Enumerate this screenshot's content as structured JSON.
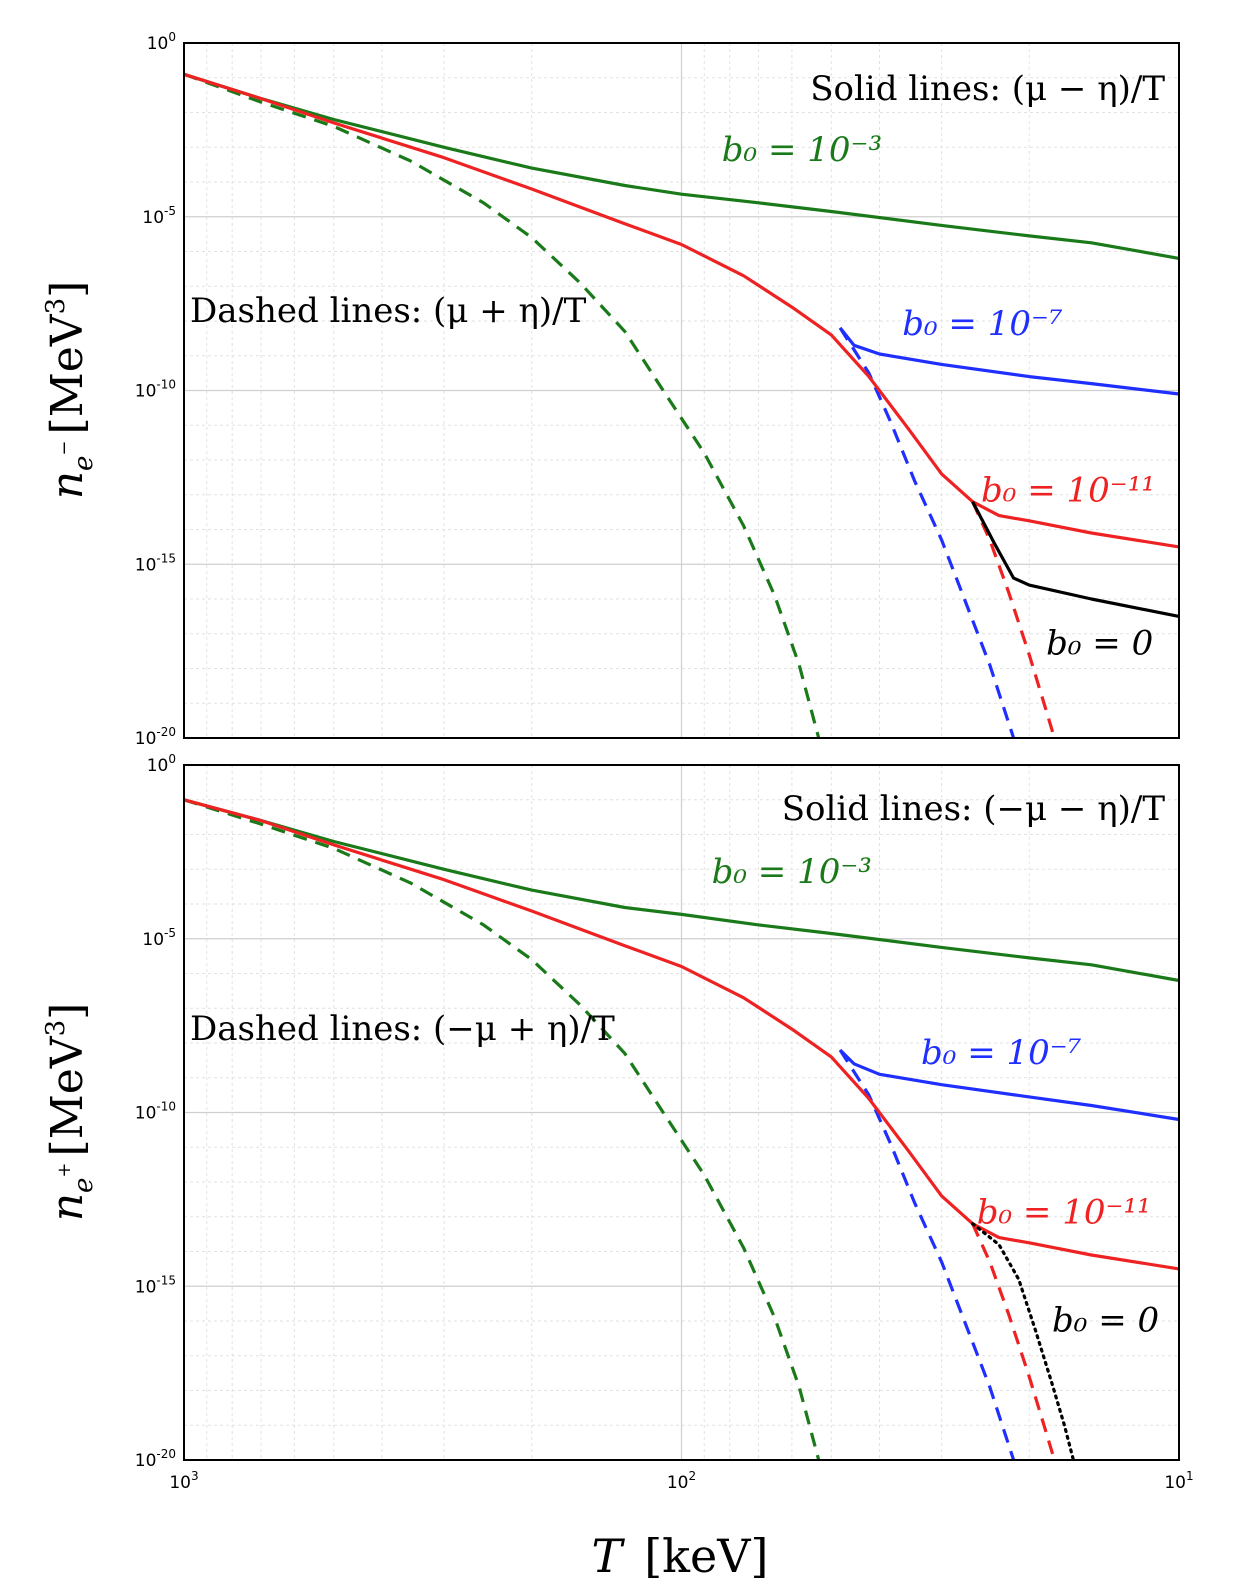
{
  "figure": {
    "xlabel_var": "T",
    "xlabel_unit": "[keV]"
  },
  "chart_data": [
    {
      "type": "line",
      "panel": "top",
      "ylabel_var": "n",
      "ylabel_sub": "e",
      "ylabel_sup": "−",
      "ylabel_unit": "[MeV",
      "ylabel_unit_exp": "3",
      "ylabel_close": "]",
      "x_scale": "log",
      "x_reversed": true,
      "xlim": [
        1000,
        10
      ],
      "y_scale": "log",
      "ylim": [
        1e-20,
        1
      ],
      "grid": true,
      "x_ticks": [
        {
          "base": "10",
          "exp": "3",
          "value": 1000
        },
        {
          "base": "10",
          "exp": "2",
          "value": 100
        },
        {
          "base": "10",
          "exp": "1",
          "value": 10
        }
      ],
      "y_ticks": [
        {
          "base": "10",
          "exp": "0",
          "value": 0
        },
        {
          "base": "10",
          "exp": "-5",
          "value": -5
        },
        {
          "base": "10",
          "exp": "-10",
          "value": -10
        },
        {
          "base": "10",
          "exp": "-15",
          "value": -15
        },
        {
          "base": "10",
          "exp": "-20",
          "value": -20
        }
      ],
      "annotations": {
        "solid": "Solid lines: (μ − η)/T",
        "dashed": "Dashed lines: (μ + η)/T"
      },
      "series": [
        {
          "label": "b₀ = 10⁻³",
          "color": "#1a7a1a",
          "style": "solid",
          "log10_points": [
            [
              1000,
              -0.9
            ],
            [
              700,
              -1.6
            ],
            [
              500,
              -2.2
            ],
            [
              300,
              -3.0
            ],
            [
              200,
              -3.6
            ],
            [
              130,
              -4.1
            ],
            [
              100,
              -4.35
            ],
            [
              70,
              -4.6
            ],
            [
              50,
              -4.85
            ],
            [
              30,
              -5.25
            ],
            [
              20,
              -5.55
            ],
            [
              15,
              -5.75
            ],
            [
              10,
              -6.2
            ]
          ]
        },
        {
          "label": "",
          "color": "#1a7a1a",
          "style": "dashed",
          "log10_points": [
            [
              1000,
              -0.9
            ],
            [
              700,
              -1.7
            ],
            [
              500,
              -2.4
            ],
            [
              350,
              -3.4
            ],
            [
              250,
              -4.6
            ],
            [
              200,
              -5.6
            ],
            [
              160,
              -6.9
            ],
            [
              130,
              -8.3
            ],
            [
              110,
              -9.9
            ],
            [
              90,
              -11.8
            ],
            [
              75,
              -13.9
            ],
            [
              65,
              -15.9
            ],
            [
              58,
              -17.9
            ],
            [
              53,
              -20
            ]
          ]
        },
        {
          "label": "b₀ = 10⁻⁷",
          "color": "#1f2fff",
          "style": "solid",
          "log10_points": [
            [
              48,
              -8.2
            ],
            [
              45,
              -8.7
            ],
            [
              40,
              -8.95
            ],
            [
              30,
              -9.25
            ],
            [
              20,
              -9.6
            ],
            [
              15,
              -9.8
            ],
            [
              10,
              -10.1
            ]
          ]
        },
        {
          "label": "",
          "color": "#1f2fff",
          "style": "dashed",
          "log10_points": [
            [
              48,
              -8.2
            ],
            [
              42,
              -9.5
            ],
            [
              38,
              -10.9
            ],
            [
              34,
              -12.6
            ],
            [
              30,
              -14.3
            ],
            [
              27,
              -16.0
            ],
            [
              24,
              -17.9
            ],
            [
              21.5,
              -20
            ]
          ]
        },
        {
          "label": "b₀ = 10⁻¹¹",
          "color": "#ee2222",
          "style": "solid",
          "log10_points": [
            [
              1000,
              -0.9
            ],
            [
              700,
              -1.6
            ],
            [
              500,
              -2.3
            ],
            [
              300,
              -3.3
            ],
            [
              200,
              -4.2
            ],
            [
              130,
              -5.2
            ],
            [
              100,
              -5.8
            ],
            [
              75,
              -6.7
            ],
            [
              60,
              -7.6
            ],
            [
              50,
              -8.4
            ],
            [
              42,
              -9.6
            ],
            [
              35,
              -11.1
            ],
            [
              30,
              -12.4
            ],
            [
              26,
              -13.2
            ],
            [
              23,
              -13.6
            ],
            [
              20,
              -13.75
            ],
            [
              15,
              -14.1
            ],
            [
              10,
              -14.5
            ]
          ]
        },
        {
          "label": "",
          "color": "#ee2222",
          "style": "dashed",
          "log10_points": [
            [
              26,
              -13.2
            ],
            [
              24,
              -14.3
            ],
            [
              22,
              -15.8
            ],
            [
              20,
              -17.6
            ],
            [
              18.5,
              -19.2
            ],
            [
              17.8,
              -20
            ]
          ]
        },
        {
          "label": "b₀ = 0",
          "color": "#000000",
          "style": "solid",
          "log10_points": [
            [
              26,
              -13.2
            ],
            [
              23.5,
              -14.4
            ],
            [
              21.5,
              -15.4
            ],
            [
              20,
              -15.6
            ],
            [
              15,
              -16.0
            ],
            [
              10,
              -16.5
            ]
          ]
        }
      ],
      "labels": [
        {
          "text": "b₀ = 10⁻³",
          "color": "#1a7a1a",
          "anchor_x": 83,
          "anchor_logy": -3.4
        },
        {
          "text": "b₀ = 10⁻⁷",
          "color": "#1f2fff",
          "anchor_x": 36,
          "anchor_logy": -8.4
        },
        {
          "text": "b₀ = 10⁻¹¹",
          "color": "#ee2222",
          "anchor_x": 25,
          "anchor_logy": -13.2
        },
        {
          "text": "b₀ = 0",
          "color": "#000000",
          "anchor_x": 18.5,
          "anchor_logy": -17.6
        }
      ]
    },
    {
      "type": "line",
      "panel": "bottom",
      "ylabel_var": "n",
      "ylabel_sub": "e",
      "ylabel_sup": "+",
      "ylabel_unit": "[MeV",
      "ylabel_unit_exp": "3",
      "ylabel_close": "]",
      "x_scale": "log",
      "x_reversed": true,
      "xlim": [
        1000,
        10
      ],
      "y_scale": "log",
      "ylim": [
        1e-20,
        1
      ],
      "grid": true,
      "x_ticks": [
        {
          "base": "10",
          "exp": "3",
          "value": 1000
        },
        {
          "base": "10",
          "exp": "2",
          "value": 100
        },
        {
          "base": "10",
          "exp": "1",
          "value": 10
        }
      ],
      "y_ticks": [
        {
          "base": "10",
          "exp": "0",
          "value": 0
        },
        {
          "base": "10",
          "exp": "-5",
          "value": -5
        },
        {
          "base": "10",
          "exp": "-10",
          "value": -10
        },
        {
          "base": "10",
          "exp": "-15",
          "value": -15
        },
        {
          "base": "10",
          "exp": "-20",
          "value": -20
        }
      ],
      "annotations": {
        "solid": "Solid lines: (−μ − η)/T",
        "dashed": "Dashed lines: (−μ + η)/T"
      },
      "series": [
        {
          "label": "b₀ = 10⁻³",
          "color": "#1a7a1a",
          "style": "solid",
          "log10_points": [
            [
              1000,
              -1.0
            ],
            [
              700,
              -1.6
            ],
            [
              500,
              -2.2
            ],
            [
              300,
              -3.0
            ],
            [
              200,
              -3.6
            ],
            [
              130,
              -4.1
            ],
            [
              100,
              -4.3
            ],
            [
              70,
              -4.6
            ],
            [
              50,
              -4.85
            ],
            [
              30,
              -5.25
            ],
            [
              20,
              -5.55
            ],
            [
              15,
              -5.75
            ],
            [
              10,
              -6.2
            ]
          ]
        },
        {
          "label": "",
          "color": "#1a7a1a",
          "style": "dashed",
          "log10_points": [
            [
              1000,
              -1.0
            ],
            [
              700,
              -1.7
            ],
            [
              500,
              -2.4
            ],
            [
              350,
              -3.4
            ],
            [
              250,
              -4.6
            ],
            [
              200,
              -5.6
            ],
            [
              160,
              -6.9
            ],
            [
              130,
              -8.3
            ],
            [
              110,
              -9.9
            ],
            [
              90,
              -11.8
            ],
            [
              75,
              -13.9
            ],
            [
              65,
              -15.9
            ],
            [
              58,
              -17.9
            ],
            [
              53,
              -20
            ]
          ]
        },
        {
          "label": "b₀ = 10⁻⁷",
          "color": "#1f2fff",
          "style": "solid",
          "log10_points": [
            [
              48,
              -8.2
            ],
            [
              45,
              -8.6
            ],
            [
              40,
              -8.9
            ],
            [
              30,
              -9.2
            ],
            [
              20,
              -9.55
            ],
            [
              15,
              -9.8
            ],
            [
              10,
              -10.2
            ]
          ]
        },
        {
          "label": "",
          "color": "#1f2fff",
          "style": "dashed",
          "log10_points": [
            [
              48,
              -8.2
            ],
            [
              42,
              -9.5
            ],
            [
              38,
              -10.9
            ],
            [
              34,
              -12.6
            ],
            [
              30,
              -14.3
            ],
            [
              27,
              -16.0
            ],
            [
              24,
              -17.9
            ],
            [
              21.5,
              -20
            ]
          ]
        },
        {
          "label": "b₀ = 10⁻¹¹",
          "color": "#ee2222",
          "style": "solid",
          "log10_points": [
            [
              1000,
              -1.0
            ],
            [
              700,
              -1.6
            ],
            [
              500,
              -2.3
            ],
            [
              300,
              -3.3
            ],
            [
              200,
              -4.2
            ],
            [
              130,
              -5.2
            ],
            [
              100,
              -5.8
            ],
            [
              75,
              -6.7
            ],
            [
              60,
              -7.6
            ],
            [
              50,
              -8.4
            ],
            [
              42,
              -9.6
            ],
            [
              35,
              -11.1
            ],
            [
              30,
              -12.4
            ],
            [
              26,
              -13.2
            ],
            [
              23,
              -13.6
            ],
            [
              20,
              -13.75
            ],
            [
              15,
              -14.1
            ],
            [
              10,
              -14.5
            ]
          ]
        },
        {
          "label": "",
          "color": "#ee2222",
          "style": "dashed",
          "log10_points": [
            [
              26,
              -13.2
            ],
            [
              24,
              -14.3
            ],
            [
              22,
              -15.8
            ],
            [
              20,
              -17.6
            ],
            [
              18.5,
              -19.2
            ],
            [
              17.8,
              -20
            ]
          ]
        },
        {
          "label": "b₀ = 0",
          "color": "#000000",
          "style": "dotted",
          "log10_points": [
            [
              26,
              -13.2
            ],
            [
              23,
              -13.8
            ],
            [
              21,
              -14.8
            ],
            [
              19.5,
              -16.2
            ],
            [
              18,
              -17.8
            ],
            [
              17,
              -19.0
            ],
            [
              16.3,
              -20
            ]
          ]
        }
      ],
      "labels": [
        {
          "text": "b₀ = 10⁻³",
          "color": "#1a7a1a",
          "anchor_x": 87,
          "anchor_logy": -3.4
        },
        {
          "text": "b₀ = 10⁻⁷",
          "color": "#1f2fff",
          "anchor_x": 33,
          "anchor_logy": -8.6
        },
        {
          "text": "b₀ = 10⁻¹¹",
          "color": "#ee2222",
          "anchor_x": 25.5,
          "anchor_logy": -13.2
        },
        {
          "text": "b₀ = 0",
          "color": "#000000",
          "anchor_x": 18,
          "anchor_logy": -16.3
        }
      ]
    }
  ]
}
